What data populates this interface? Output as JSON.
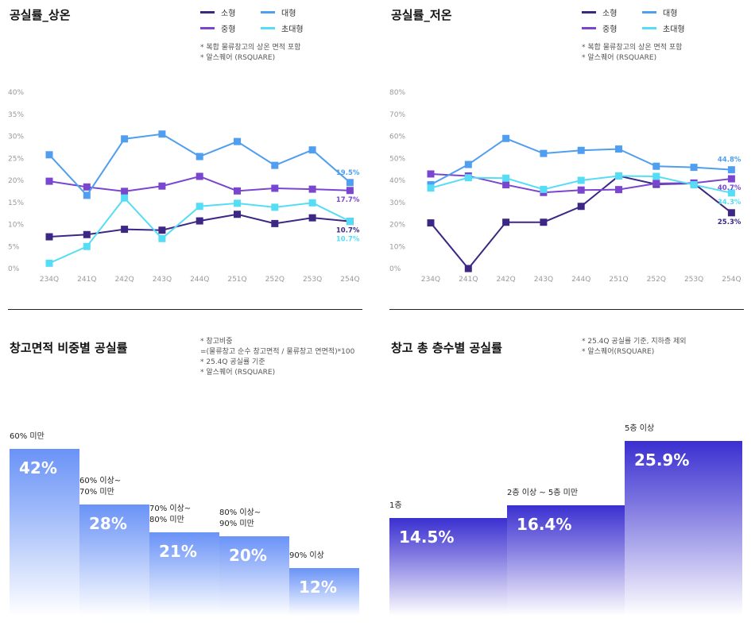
{
  "chart_data": [
    {
      "type": "line",
      "title": "공실률_상온",
      "categories": [
        "234Q",
        "241Q",
        "242Q",
        "243Q",
        "244Q",
        "251Q",
        "252Q",
        "253Q",
        "254Q"
      ],
      "yticks": [
        "0%",
        "5%",
        "10%",
        "15%",
        "20%",
        "25%",
        "30%",
        "35%",
        "40%"
      ],
      "ylim": [
        0,
        40
      ],
      "series": [
        {
          "name": "소형",
          "color": "#3d2785",
          "values": [
            7.2,
            7.7,
            8.9,
            8.7,
            10.8,
            12.3,
            10.2,
            11.5,
            10.7
          ]
        },
        {
          "name": "중형",
          "color": "#7a46d0",
          "values": [
            19.8,
            18.5,
            17.5,
            18.7,
            20.9,
            17.6,
            18.2,
            18.0,
            17.7
          ]
        },
        {
          "name": "대형",
          "color": "#4f9ef0",
          "values": [
            25.8,
            16.6,
            29.4,
            30.5,
            25.4,
            28.8,
            23.4,
            26.9,
            19.5
          ]
        },
        {
          "name": "초대형",
          "color": "#55ddf5",
          "values": [
            1.2,
            5.0,
            16.0,
            6.8,
            14.1,
            14.8,
            13.9,
            14.9,
            10.7
          ]
        }
      ],
      "end_labels": [
        "19.5%",
        "17.7%",
        "10.7%",
        "10.7%"
      ],
      "notes": [
        "*  복합 물류창고의 상온 면적 포함",
        "*  알스퀘어 (RSQUARE)"
      ]
    },
    {
      "type": "line",
      "title": "공실률_저온",
      "categories": [
        "234Q",
        "241Q",
        "242Q",
        "243Q",
        "244Q",
        "251Q",
        "252Q",
        "253Q",
        "254Q"
      ],
      "yticks": [
        "0%",
        "10%",
        "20%",
        "30%",
        "40%",
        "50%",
        "60%",
        "70%",
        "80%"
      ],
      "ylim": [
        0,
        80
      ],
      "series": [
        {
          "name": "소형",
          "color": "#3d2785",
          "values": [
            20.7,
            0,
            21.0,
            21.0,
            28.2,
            42.0,
            38.2,
            38.6,
            25.3
          ]
        },
        {
          "name": "중형",
          "color": "#7a46d0",
          "values": [
            42.9,
            42.0,
            38.0,
            34.5,
            35.6,
            35.8,
            38.6,
            38.8,
            40.7
          ]
        },
        {
          "name": "대형",
          "color": "#4f9ef0",
          "values": [
            38.0,
            47.2,
            59.0,
            52.2,
            53.6,
            54.2,
            46.4,
            45.9,
            44.8
          ]
        },
        {
          "name": "초대형",
          "color": "#55ddf5",
          "values": [
            36.5,
            41.2,
            41.0,
            35.9,
            40.0,
            42.0,
            41.8,
            38.0,
            34.3
          ]
        }
      ],
      "end_labels": [
        "44.8%",
        "40.7%",
        "34.3%",
        "25.3%"
      ],
      "notes": [
        "*  복합 물류창고의 상온 면적 포함",
        "*  알스퀘어 (RSQUARE)"
      ]
    },
    {
      "type": "bar",
      "title": "창고면적 비중별 공실률",
      "categories": [
        "60% 미만",
        "60% 이상~\n70% 미만",
        "70% 이상~\n80% 미만",
        "80% 이상~\n90% 미만",
        "90% 이상"
      ],
      "values": [
        42,
        28,
        21,
        20,
        12
      ],
      "labels": [
        "42%",
        "28%",
        "21%",
        "20%",
        "12%"
      ],
      "ylim": [
        0,
        50
      ],
      "color": "#6a93f7",
      "notes": [
        "*  창고비중",
        "    =(물류창고 순수 창고면적 / 물류창고 연면적)*100",
        "*  25.4Q 공실률 기준",
        "*  알스퀘어 (RSQUARE)"
      ]
    },
    {
      "type": "bar",
      "title": "창고 총 층수별 공실률",
      "categories": [
        "1층",
        "2층 이상 ~ 5층 미만",
        "5층 이상"
      ],
      "values": [
        14.5,
        16.4,
        25.9
      ],
      "labels": [
        "14.5%",
        "16.4%",
        "25.9%"
      ],
      "ylim": [
        0,
        30
      ],
      "color": "#3a2fd0",
      "notes": [
        "*  25.4Q 공실률 기준, 지하층 제외",
        "*  알스퀘어(RSQUARE)"
      ]
    }
  ]
}
